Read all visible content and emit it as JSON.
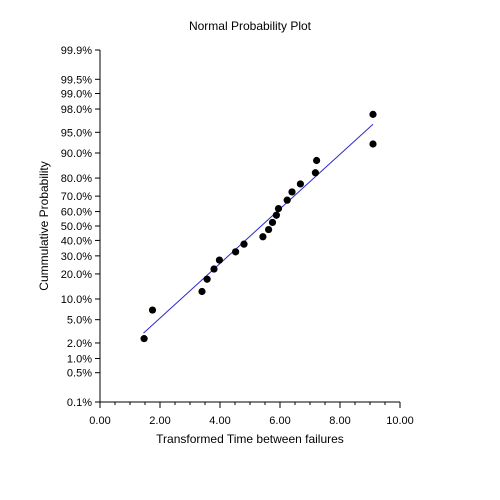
{
  "chart_data": {
    "type": "scatter",
    "title": "Normal Probability Plot",
    "xlabel": "Transformed Time between failures",
    "ylabel": "Cummulative Probability",
    "xlim": [
      0,
      10
    ],
    "x_ticks": [
      0,
      2,
      4,
      6,
      8,
      10
    ],
    "x_tick_labels": [
      "0.00",
      "2.00",
      "4.00",
      "6.00",
      "8.00",
      "10.00"
    ],
    "y_scale": "normal-probability",
    "ylim": [
      0.1,
      99.9
    ],
    "y_ticks": [
      0.1,
      0.5,
      1.0,
      2.0,
      5.0,
      10.0,
      20.0,
      30.0,
      40.0,
      50.0,
      60.0,
      70.0,
      80.0,
      90.0,
      95.0,
      98.0,
      99.0,
      99.5,
      99.9
    ],
    "y_tick_labels": [
      "0.1%",
      "0.5%",
      "1.0%",
      "2.0%",
      "5.0%",
      "10.0%",
      "20.0%",
      "30.0%",
      "40.0%",
      "50.0%",
      "60.0%",
      "70.0%",
      "80.0%",
      "90.0%",
      "95.0%",
      "98.0%",
      "99.0%",
      "99.5%",
      "99.9%"
    ],
    "grid": false,
    "points": [
      {
        "x": 1.47,
        "y": 2.4
      },
      {
        "x": 1.75,
        "y": 7.0
      },
      {
        "x": 3.4,
        "y": 12.5
      },
      {
        "x": 3.57,
        "y": 17.5
      },
      {
        "x": 3.8,
        "y": 22.5
      },
      {
        "x": 3.98,
        "y": 27.5
      },
      {
        "x": 4.52,
        "y": 32.5
      },
      {
        "x": 4.8,
        "y": 37.5
      },
      {
        "x": 5.43,
        "y": 42.5
      },
      {
        "x": 5.62,
        "y": 47.5
      },
      {
        "x": 5.75,
        "y": 52.5
      },
      {
        "x": 5.88,
        "y": 57.5
      },
      {
        "x": 5.95,
        "y": 62.0
      },
      {
        "x": 6.24,
        "y": 67.5
      },
      {
        "x": 6.4,
        "y": 72.5
      },
      {
        "x": 6.68,
        "y": 77.0
      },
      {
        "x": 7.18,
        "y": 82.5
      },
      {
        "x": 7.22,
        "y": 87.5
      },
      {
        "x": 9.1,
        "y": 92.5
      },
      {
        "x": 9.1,
        "y": 97.5
      }
    ],
    "fit_line": {
      "x": [
        1.45,
        9.1
      ],
      "y": [
        3.0,
        96.3
      ],
      "color": "#2a2ad0"
    },
    "marker_color": "#000000"
  }
}
